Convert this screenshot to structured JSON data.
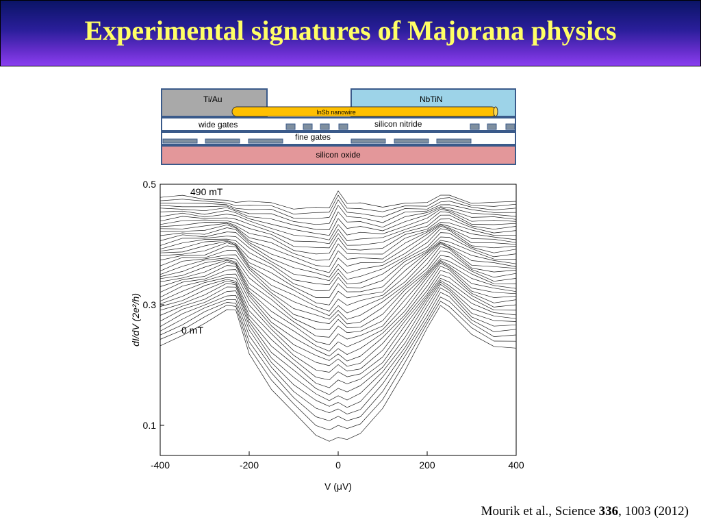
{
  "slide": {
    "title": "Experimental signatures of Majorana physics",
    "colors": {
      "title_text": "#ffff66",
      "title_bar_top": "#0a1466",
      "title_bar_bottom": "#8a3ff0"
    }
  },
  "device": {
    "left_contact": "Ti/Au",
    "right_contact": "NbTiN",
    "nanowire": "InSb nanowire",
    "left_dielectric_label": "wide gates",
    "right_dielectric_label": "silicon nitride",
    "gate_label": "fine gates",
    "substrate": "silicon oxide",
    "colors": {
      "tiau": "#a9a9a9",
      "nbtin": "#9dd3e8",
      "nanowire": "#ffc000",
      "gate": "#7f8f9f",
      "oxide": "#e3979a",
      "border": "#3a5a8a"
    }
  },
  "citation": {
    "prefix": "Mourik et al., Science ",
    "volume": "336",
    "suffix": ", 1003 (2012)"
  },
  "chart_data": {
    "type": "line",
    "xlabel": "V (μV)",
    "ylabel": "dI/dV (2e²/h)",
    "xlim": [
      -400,
      400
    ],
    "ylim": [
      0.05,
      0.5
    ],
    "xticks": [
      -400,
      -200,
      0,
      200,
      400
    ],
    "yticks": [
      0.1,
      0.3,
      0.5
    ],
    "ytick_labels": [
      "0.1",
      "0.3",
      "0.5"
    ],
    "annotations": [
      {
        "text": "490 mT",
        "x": -300,
        "y": 0.485
      },
      {
        "text": "0 mT",
        "x": -320,
        "y": 0.258
      }
    ],
    "line_color": "#1a1a1a",
    "series_count": 40,
    "field_range_mT": [
      0,
      490
    ],
    "x": [
      -400,
      -350,
      -300,
      -250,
      -230,
      -200,
      -150,
      -100,
      -50,
      -20,
      0,
      20,
      50,
      100,
      150,
      200,
      230,
      250,
      300,
      350,
      400
    ],
    "series": [
      {
        "name": "0 mT",
        "values": [
          0.23,
          0.25,
          0.27,
          0.29,
          0.29,
          0.22,
          0.16,
          0.12,
          0.085,
          0.075,
          0.08,
          0.075,
          0.085,
          0.13,
          0.19,
          0.26,
          0.3,
          0.29,
          0.25,
          0.23,
          0.23
        ]
      },
      {
        "name": "490 mT",
        "values": [
          0.48,
          0.48,
          0.475,
          0.475,
          0.47,
          0.47,
          0.47,
          0.46,
          0.46,
          0.46,
          0.49,
          0.47,
          0.47,
          0.46,
          0.47,
          0.47,
          0.48,
          0.48,
          0.47,
          0.47,
          0.47
        ]
      }
    ]
  }
}
